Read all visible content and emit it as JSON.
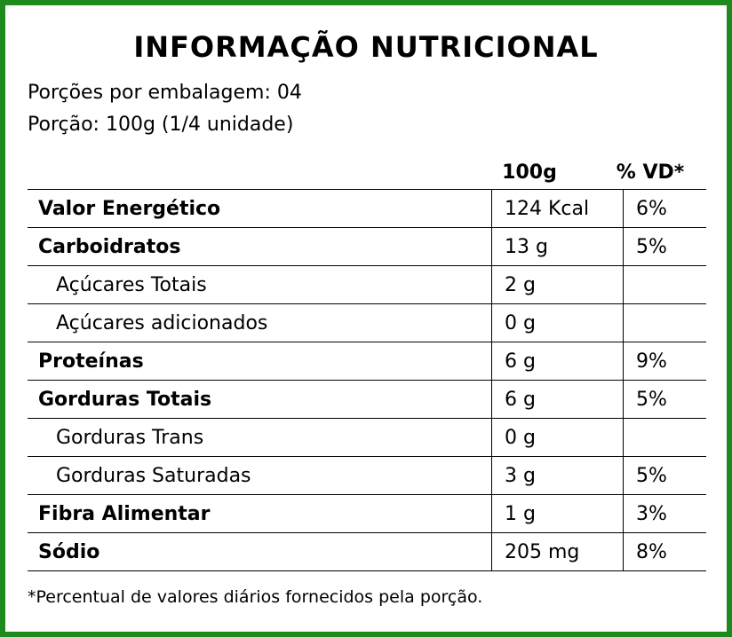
{
  "title": "INFORMAÇÃO NUTRICIONAL",
  "servings_per_package": "Porções por embalagem: 04",
  "serving_size": "Porção: 100g (1/4 unidade)",
  "columns": {
    "amount": "100g",
    "vd": "% VD*"
  },
  "rows": [
    {
      "name": "Valor Energético",
      "amount": "124 Kcal",
      "vd": "6%",
      "bold": true
    },
    {
      "name": "Carboidratos",
      "amount": "13 g",
      "vd": "5%",
      "bold": true
    },
    {
      "name": "Açúcares Totais",
      "amount": "2 g",
      "vd": "",
      "bold": false
    },
    {
      "name": "Açúcares adicionados",
      "amount": "0 g",
      "vd": "",
      "bold": false
    },
    {
      "name": "Proteínas",
      "amount": "6 g",
      "vd": "9%",
      "bold": true
    },
    {
      "name": "Gorduras Totais",
      "amount": "6 g",
      "vd": "5%",
      "bold": true
    },
    {
      "name": "Gorduras Trans",
      "amount": "0 g",
      "vd": "",
      "bold": false
    },
    {
      "name": "Gorduras Saturadas",
      "amount": "3 g",
      "vd": "5%",
      "bold": false
    },
    {
      "name": "Fibra Alimentar",
      "amount": "1 g",
      "vd": "3%",
      "bold": true
    },
    {
      "name": "Sódio",
      "amount": "205 mg",
      "vd": "8%",
      "bold": true
    }
  ],
  "footnote": "*Percentual de valores diários fornecidos pela porção.",
  "colors": {
    "border": "#1e8a1e",
    "text": "#000000",
    "background": "#ffffff"
  }
}
